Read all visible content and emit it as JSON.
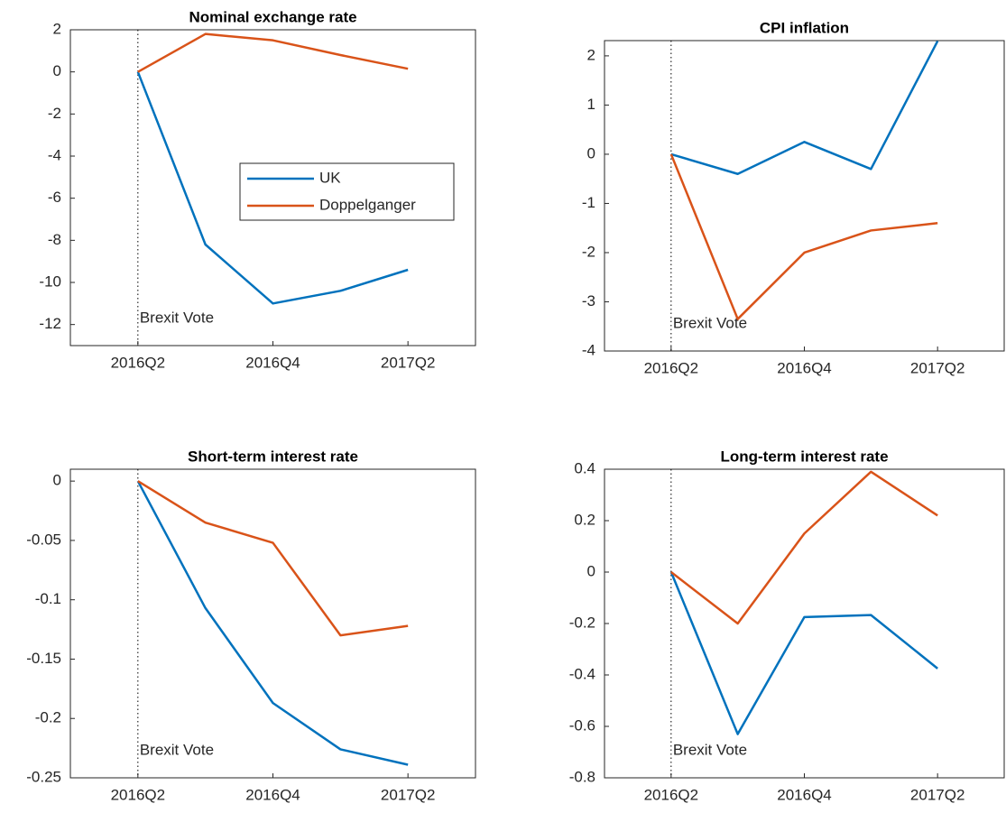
{
  "chart_data": [
    {
      "type": "line",
      "title": "Nominal exchange rate",
      "categories": [
        "2016Q2",
        null,
        "2016Q4",
        null,
        "2017Q2"
      ],
      "series": [
        {
          "name": "UK",
          "color": "#0072bd",
          "values": [
            0,
            -8.2,
            -11.0,
            -10.4,
            -9.4
          ]
        },
        {
          "name": "Doppelganger",
          "color": "#d95319",
          "values": [
            0,
            1.8,
            1.5,
            0.8,
            0.15
          ]
        }
      ],
      "ylim": [
        -13,
        2
      ],
      "yticks": [
        -12,
        -10,
        -8,
        -6,
        -4,
        -2,
        0,
        2
      ],
      "annotation": "Brexit Vote",
      "legend": "center"
    },
    {
      "type": "line",
      "title": "CPI inflation",
      "categories": [
        "2016Q2",
        null,
        "2016Q4",
        null,
        "2017Q2"
      ],
      "series": [
        {
          "color": "#0072bd",
          "values": [
            0,
            -0.4,
            0.25,
            -0.3,
            2.3
          ]
        },
        {
          "color": "#d95319",
          "values": [
            0,
            -3.35,
            -2.0,
            -1.55,
            -1.4
          ]
        }
      ],
      "ylim": [
        -4,
        2.31
      ],
      "yticks": [
        -4,
        -3,
        -2,
        -1,
        0,
        1,
        2
      ],
      "annotation": "Brexit Vote"
    },
    {
      "type": "line",
      "title": "Short-term interest rate",
      "categories": [
        "2016Q2",
        null,
        "2016Q4",
        null,
        "2017Q2"
      ],
      "series": [
        {
          "color": "#0072bd",
          "values": [
            0,
            -0.107,
            -0.187,
            -0.226,
            -0.239
          ]
        },
        {
          "color": "#d95319",
          "values": [
            0,
            -0.035,
            -0.052,
            -0.13,
            -0.122
          ]
        }
      ],
      "ylim": [
        -0.25,
        0.01
      ],
      "yticks": [
        -0.25,
        -0.2,
        -0.15,
        -0.1,
        -0.05,
        0
      ],
      "annotation": "Brexit Vote"
    },
    {
      "type": "line",
      "title": "Long-term interest rate",
      "categories": [
        "2016Q2",
        null,
        "2016Q4",
        null,
        "2017Q2"
      ],
      "series": [
        {
          "color": "#0072bd",
          "values": [
            0,
            -0.63,
            -0.175,
            -0.167,
            -0.375
          ]
        },
        {
          "color": "#d95319",
          "values": [
            0,
            -0.2,
            0.15,
            0.39,
            0.22
          ]
        }
      ],
      "ylim": [
        -0.8,
        0.4
      ],
      "yticks": [
        -0.8,
        -0.6,
        -0.4,
        -0.2,
        0,
        0.2,
        0.4
      ],
      "annotation": "Brexit Vote"
    }
  ]
}
